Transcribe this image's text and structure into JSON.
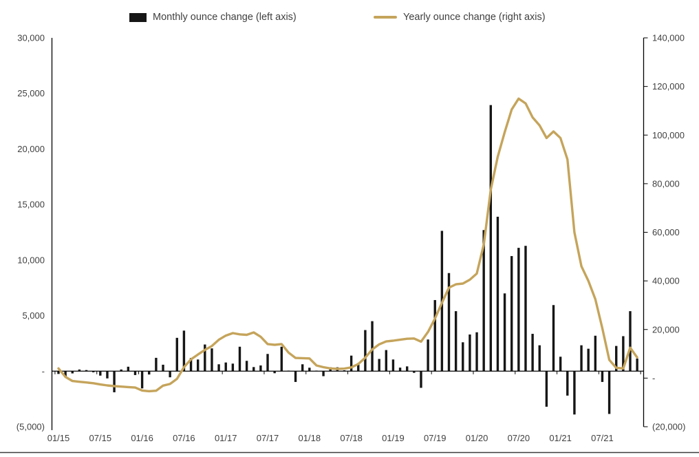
{
  "legend": {
    "monthly_label": "Monthly ounce change (left axis)",
    "yearly_label": "Yearly ounce change (right axis)"
  },
  "colors": {
    "bar": "#161616",
    "line": "#c5a45b",
    "axis": "#000000",
    "tick_text": "#404040"
  },
  "axes": {
    "left_ticks": [
      "30,000",
      "25,000",
      "20,000",
      "15,000",
      "10,000",
      "5,000",
      "-",
      "(5,000)"
    ],
    "right_ticks": [
      "140,000",
      "120,000",
      "100,000",
      "80,000",
      "60,000",
      "40,000",
      "20,000",
      "-",
      "(20,000)"
    ],
    "x_ticks": [
      "01/15",
      "07/15",
      "01/16",
      "07/16",
      "01/17",
      "07/17",
      "01/18",
      "07/18",
      "01/19",
      "07/19",
      "01/20",
      "07/20",
      "01/21",
      "07/21"
    ]
  },
  "chart_data": {
    "type": "bar",
    "subtype": "combo-bar-line-two-axes",
    "title": "",
    "xlabel": "",
    "ylabel_left": "Monthly ounce change",
    "ylabel_right": "Yearly ounce change",
    "left_axis": {
      "min": -5000,
      "max": 30000,
      "step": 5000
    },
    "right_axis": {
      "min": -20000,
      "max": 140000,
      "step": 20000
    },
    "legend_position": "top-center",
    "grid": false,
    "months": [
      "01/15",
      "02/15",
      "03/15",
      "04/15",
      "05/15",
      "06/15",
      "07/15",
      "08/15",
      "09/15",
      "10/15",
      "11/15",
      "12/15",
      "01/16",
      "02/16",
      "03/16",
      "04/16",
      "05/16",
      "06/16",
      "07/16",
      "08/16",
      "09/16",
      "10/16",
      "11/16",
      "12/16",
      "01/17",
      "02/17",
      "03/17",
      "04/17",
      "05/17",
      "06/17",
      "07/17",
      "08/17",
      "09/17",
      "10/17",
      "11/17",
      "12/17",
      "01/18",
      "02/18",
      "03/18",
      "04/18",
      "05/18",
      "06/18",
      "07/18",
      "08/18",
      "09/18",
      "10/18",
      "11/18",
      "12/18",
      "01/19",
      "02/19",
      "03/19",
      "04/19",
      "05/19",
      "06/19",
      "07/19",
      "08/19",
      "09/19",
      "10/19",
      "11/19",
      "12/19",
      "01/20",
      "02/20",
      "03/20",
      "04/20",
      "05/20",
      "06/20",
      "07/20",
      "08/20",
      "09/20",
      "10/20",
      "11/20",
      "12/20",
      "01/21",
      "02/21",
      "03/21",
      "04/21",
      "05/21",
      "06/21",
      "07/21",
      "08/21",
      "09/21",
      "10/21",
      "11/21",
      "12/21"
    ],
    "series": [
      {
        "name": "Monthly ounce change (left axis)",
        "type": "bar",
        "axis": "left",
        "values": [
          -250,
          -550,
          -200,
          150,
          100,
          -100,
          -400,
          -650,
          -1900,
          150,
          400,
          -350,
          -1550,
          -300,
          1200,
          580,
          -550,
          3000,
          3650,
          1190,
          1050,
          2400,
          2050,
          620,
          780,
          680,
          2200,
          930,
          370,
          515,
          1550,
          -185,
          2200,
          50,
          -970,
          620,
          310,
          50,
          -450,
          350,
          350,
          80,
          1400,
          720,
          3700,
          4500,
          1100,
          1900,
          1050,
          320,
          430,
          -150,
          -1500,
          2850,
          6400,
          12630,
          8830,
          5400,
          2600,
          3300,
          3500,
          12700,
          23950,
          13900,
          7000,
          10360,
          11100,
          11280,
          3360,
          2330,
          -3200,
          5950,
          1300,
          -2200,
          -3900,
          2330,
          2020,
          3190,
          -970,
          -3850,
          2270,
          3150,
          5400,
          1130
        ]
      },
      {
        "name": "Yearly ounce change (right axis)",
        "type": "line",
        "axis": "right",
        "values": [
          4000,
          500,
          -1200,
          -1500,
          -1800,
          -2100,
          -2600,
          -3000,
          -3300,
          -3500,
          -3700,
          -3900,
          -5100,
          -5400,
          -5200,
          -3100,
          -2400,
          -300,
          4500,
          7700,
          9700,
          11600,
          13200,
          15800,
          17500,
          18500,
          18000,
          17800,
          18800,
          17000,
          14000,
          13700,
          14000,
          10500,
          8300,
          8200,
          8100,
          5200,
          4500,
          4000,
          3800,
          3900,
          4400,
          5800,
          8400,
          11800,
          13900,
          15100,
          15400,
          15800,
          16200,
          16300,
          15000,
          19000,
          24500,
          31000,
          37200,
          38600,
          38900,
          40500,
          43000,
          55000,
          77500,
          91000,
          101200,
          110500,
          115000,
          113000,
          107300,
          104000,
          98800,
          101500,
          98800,
          90000,
          60000,
          46000,
          40000,
          32500,
          20500,
          7500,
          4200,
          4000,
          12500,
          8500
        ]
      }
    ]
  }
}
